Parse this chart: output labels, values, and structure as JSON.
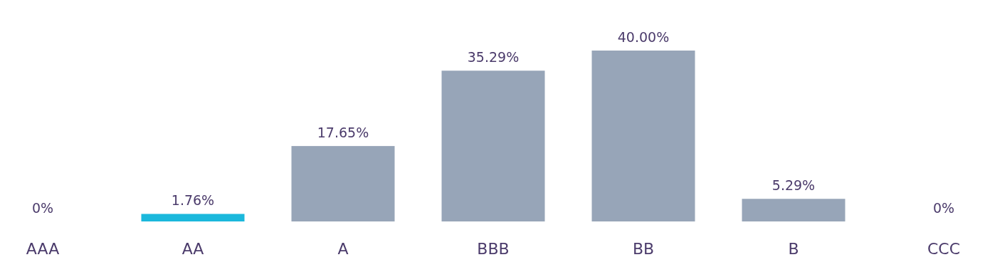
{
  "chart_data": {
    "type": "bar",
    "categories": [
      "AAA",
      "AA",
      "A",
      "BBB",
      "BB",
      "B",
      "CCC"
    ],
    "values": [
      0,
      1.76,
      17.65,
      35.29,
      40.0,
      5.29,
      0
    ],
    "colors": [
      "#97a5b8",
      "#1bb8dc",
      "#97a5b8",
      "#97a5b8",
      "#97a5b8",
      "#97a5b8",
      "#97a5b8"
    ],
    "value_labels": [
      "0%",
      "1.76%",
      "17.65%",
      "35.29%",
      "40.00%",
      "5.29%",
      "0%"
    ]
  }
}
